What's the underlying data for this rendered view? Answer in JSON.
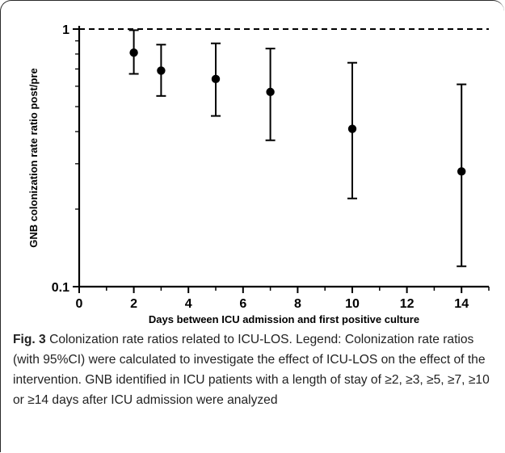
{
  "chart_data": {
    "type": "scatter",
    "xlabel": "Days between ICU admission and first positive culture",
    "ylabel": "GNB colonization rate ratio post/pre",
    "xlim": [
      0,
      15
    ],
    "ylim": [
      0.1,
      1
    ],
    "yscale": "log",
    "xticks": [
      0,
      2,
      4,
      6,
      8,
      10,
      12,
      14
    ],
    "yticks": [
      0.1,
      1
    ],
    "ytick_labels": [
      "0.1",
      "1"
    ],
    "reference_line": {
      "y": 1,
      "style": "dashed"
    },
    "points": [
      {
        "x": 2,
        "y": 0.81,
        "low": 0.67,
        "high": 0.99
      },
      {
        "x": 3,
        "y": 0.69,
        "low": 0.55,
        "high": 0.87
      },
      {
        "x": 5,
        "y": 0.64,
        "low": 0.46,
        "high": 0.88
      },
      {
        "x": 7,
        "y": 0.57,
        "low": 0.37,
        "high": 0.84
      },
      {
        "x": 10,
        "y": 0.41,
        "low": 0.22,
        "high": 0.74
      },
      {
        "x": 14,
        "y": 0.28,
        "low": 0.12,
        "high": 0.61
      }
    ]
  },
  "caption": {
    "label": "Fig. 3",
    "text": " Colonization rate ratios related to ICU-LOS. Legend: Colonization rate ratios (with 95%CI) were calculated to investigate the effect of ICU-LOS on the effect of the intervention. GNB identified in ICU patients with a length of stay of ≥2, ≥3, ≥5, ≥7, ≥10 or ≥14 days after ICU admission were analyzed"
  }
}
